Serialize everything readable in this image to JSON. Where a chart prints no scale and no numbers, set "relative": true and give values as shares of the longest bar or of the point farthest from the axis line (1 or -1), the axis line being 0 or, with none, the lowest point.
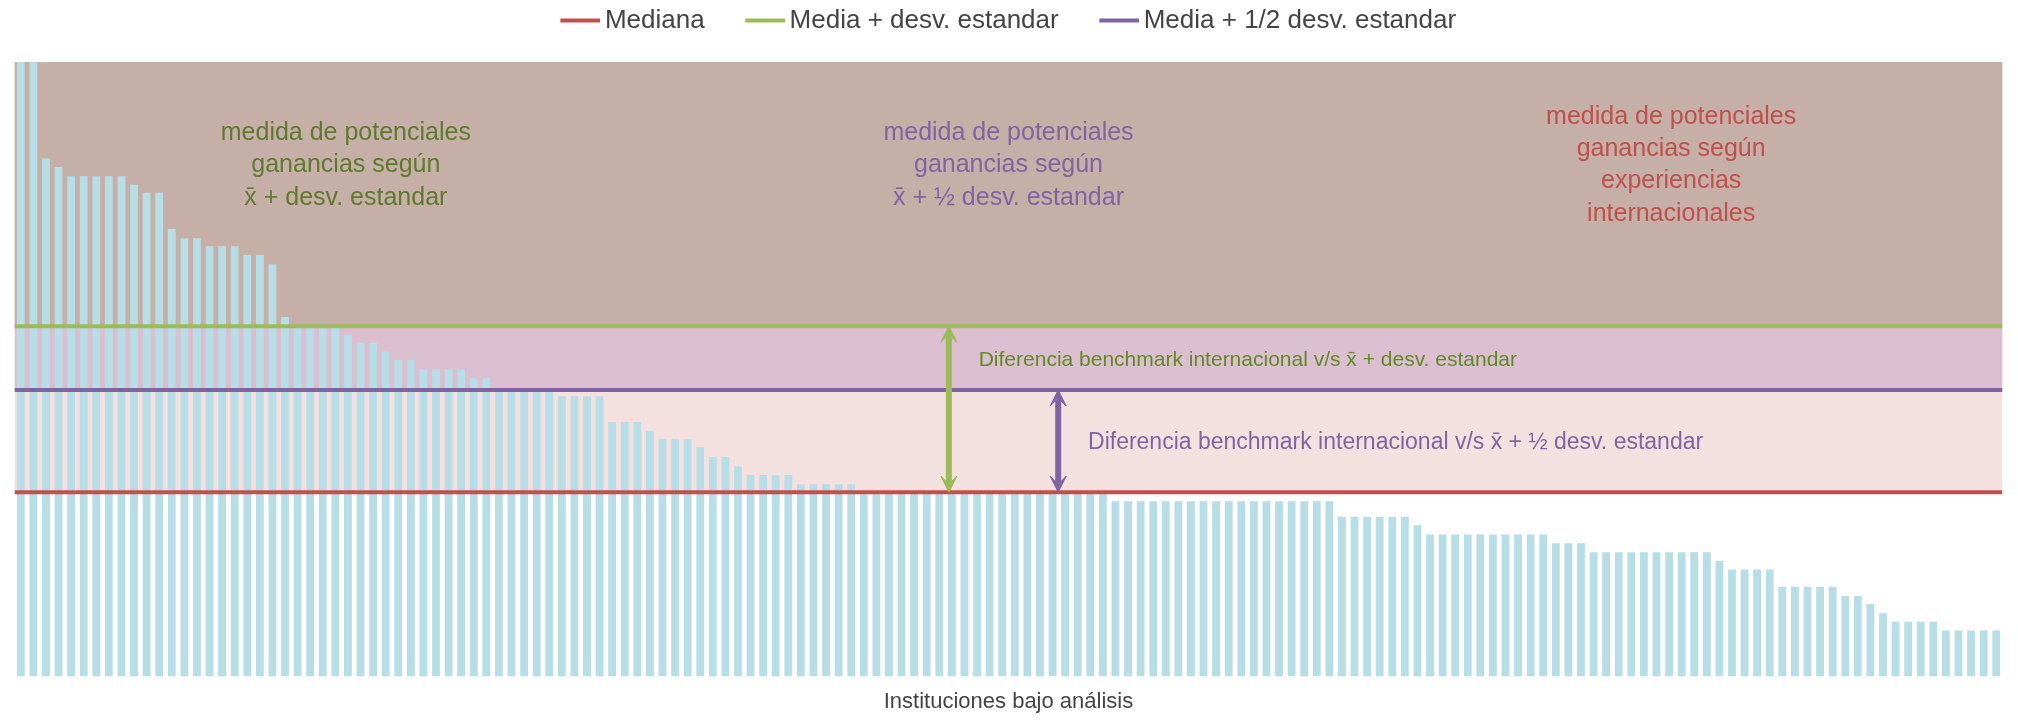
{
  "chart_data": {
    "type": "bar",
    "relative": true,
    "xlabel": "Instituciones bajo análisis",
    "color": "#b7dde6",
    "categories": [
      null,
      null,
      null,
      null,
      null,
      null,
      null,
      null,
      null,
      null,
      null,
      null,
      null,
      null,
      null,
      null,
      null,
      null,
      null,
      null,
      null,
      null,
      null,
      null,
      null,
      null,
      null,
      null,
      null,
      null,
      null,
      null,
      null,
      null,
      null,
      null,
      null,
      null,
      null,
      null,
      null,
      null,
      null,
      null,
      null,
      null,
      null,
      null,
      null,
      null,
      null,
      null,
      null,
      null,
      null,
      null,
      null,
      null,
      null,
      null,
      null,
      null,
      null,
      null,
      null,
      null,
      null,
      null,
      null,
      null,
      null,
      null,
      null,
      null,
      null,
      null,
      null,
      null,
      null,
      null,
      null,
      null,
      null,
      null,
      null,
      null,
      null,
      null,
      null,
      null,
      null,
      null,
      null,
      null,
      null,
      null,
      null,
      null,
      null,
      null,
      null,
      null,
      null,
      null,
      null,
      null,
      null,
      null,
      null,
      null,
      null,
      null,
      null,
      null,
      null,
      null,
      null,
      null,
      null,
      null,
      null,
      null,
      null,
      null,
      null,
      null,
      null,
      null,
      null,
      null,
      null,
      null,
      null,
      null,
      null,
      null,
      null,
      null,
      null,
      null,
      null,
      null,
      null,
      null,
      null,
      null,
      null,
      null,
      null,
      null,
      null,
      null,
      null,
      null,
      null,
      null,
      null,
      null
    ],
    "values": [
      1.0,
      1.0,
      0.843,
      0.829,
      0.814,
      0.814,
      0.814,
      0.814,
      0.814,
      0.8,
      0.787,
      0.787,
      0.728,
      0.713,
      0.713,
      0.7,
      0.7,
      0.7,
      0.686,
      0.686,
      0.671,
      0.585,
      0.57,
      0.57,
      0.57,
      0.57,
      0.556,
      0.543,
      0.543,
      0.529,
      0.515,
      0.515,
      0.5,
      0.5,
      0.5,
      0.5,
      0.486,
      0.486,
      0.466,
      0.466,
      0.466,
      0.466,
      0.466,
      0.456,
      0.456,
      0.456,
      0.456,
      0.414,
      0.414,
      0.414,
      0.399,
      0.386,
      0.386,
      0.386,
      0.373,
      0.357,
      0.357,
      0.342,
      0.328,
      0.328,
      0.328,
      0.328,
      0.313,
      0.313,
      0.313,
      0.313,
      0.313,
      0.3,
      0.3,
      0.3,
      0.3,
      0.3,
      0.3,
      0.3,
      0.3,
      0.3,
      0.3,
      0.3,
      0.3,
      0.3,
      0.3,
      0.3,
      0.3,
      0.3,
      0.3,
      0.3,
      0.3,
      0.285,
      0.285,
      0.285,
      0.285,
      0.285,
      0.285,
      0.285,
      0.285,
      0.285,
      0.285,
      0.285,
      0.285,
      0.285,
      0.285,
      0.285,
      0.285,
      0.285,
      0.285,
      0.26,
      0.26,
      0.26,
      0.26,
      0.26,
      0.26,
      0.246,
      0.231,
      0.231,
      0.231,
      0.231,
      0.231,
      0.231,
      0.231,
      0.231,
      0.231,
      0.231,
      0.217,
      0.217,
      0.217,
      0.202,
      0.202,
      0.202,
      0.202,
      0.202,
      0.202,
      0.202,
      0.202,
      0.202,
      0.202,
      0.188,
      0.174,
      0.174,
      0.174,
      0.174,
      0.146,
      0.146,
      0.146,
      0.146,
      0.146,
      0.131,
      0.131,
      0.118,
      0.103,
      0.089,
      0.089,
      0.089,
      0.089,
      0.075,
      0.075,
      0.075,
      0.075,
      0.075
    ],
    "ref_lines": [
      {
        "axis": "y",
        "value": 0.3,
        "label": "Mediana",
        "color": "#c0504d"
      },
      {
        "axis": "y",
        "value": 0.57,
        "label": "Media + desv. estandar",
        "color": "#9bbb59"
      },
      {
        "axis": "y",
        "value": 0.466,
        "label": "Media + 1/2 desv. estandar",
        "color": "#8064a2"
      }
    ],
    "bands": [
      {
        "axis": "y",
        "from": 0.3,
        "to": 1.0,
        "label": "medida de potenciales\nganancias según\nexperiencias\ninternacionales",
        "color": "#e8b4b4"
      },
      {
        "axis": "y",
        "from": 0.466,
        "to": 1.0,
        "label": "medida de potenciales\nganancias según\nx̄ + ½ desv. estandar",
        "color": "#b88fb8"
      },
      {
        "axis": "y",
        "from": 0.57,
        "to": 1.0,
        "label": "medida de potenciales\nganancias según\nx̄ + desv. estandar",
        "color": "#a89a70"
      }
    ],
    "annotations": [
      "Diferencia benchmark internacional v/s x̄ + desv. estandar",
      "Diferencia benchmark internacional v/s x̄ + ½ desv. estandar"
    ],
    "legend": "top",
    "grid": false
  }
}
